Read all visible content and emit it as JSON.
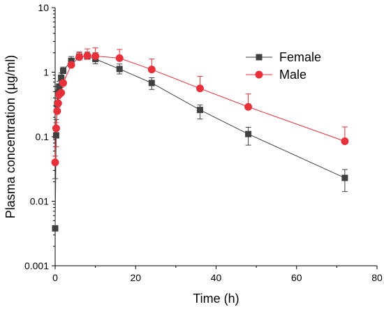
{
  "chart_data": {
    "type": "line",
    "xlabel": "Time (h)",
    "ylabel": "Plasma concentration (µg/ml)",
    "xlim": [
      0,
      80
    ],
    "ylim": [
      0.001,
      10
    ],
    "yscale": "log",
    "x_ticks": [
      0,
      20,
      40,
      60,
      80
    ],
    "x_tick_labels": [
      "0",
      "20",
      "40",
      "60",
      "80"
    ],
    "y_ticks": [
      0.001,
      0.01,
      0.1,
      1,
      10
    ],
    "y_tick_labels": [
      "0.001",
      "0.01",
      "0.1",
      "1",
      "10"
    ],
    "grid": false,
    "legend_position": "top-right",
    "series": [
      {
        "name": "Female",
        "color": "#404040",
        "marker": "square",
        "x": [
          0,
          0.25,
          0.5,
          0.75,
          1,
          1.5,
          2,
          4,
          6,
          8,
          10,
          16,
          24,
          36,
          48,
          72
        ],
        "y": [
          0.0038,
          0.105,
          0.32,
          0.48,
          0.6,
          0.82,
          1.05,
          1.5,
          1.75,
          1.75,
          1.6,
          1.12,
          0.68,
          0.26,
          0.11,
          0.023
        ],
        "err_up": [
          0.0186,
          0.08,
          0.08,
          0.12,
          0.12,
          0.15,
          0.15,
          0.25,
          0.3,
          0.3,
          0.4,
          0.22,
          0.14,
          0.05,
          0.03,
          0.008
        ],
        "err_down": [
          0.0,
          0.0,
          0.0,
          0.0,
          0.0,
          0.0,
          0.0,
          0.0,
          0.0,
          0.0,
          0.25,
          0.18,
          0.14,
          0.072,
          0.036,
          0.0089
        ]
      },
      {
        "name": "Male",
        "color": "#e8303a",
        "marker": "circle",
        "x": [
          0,
          0.25,
          0.5,
          0.75,
          1,
          1.5,
          2,
          4,
          6,
          8,
          10,
          16,
          24,
          36,
          48,
          72
        ],
        "y": [
          0.04,
          0.135,
          0.25,
          0.33,
          0.45,
          0.48,
          0.68,
          1.3,
          1.72,
          1.8,
          1.78,
          1.65,
          1.1,
          0.56,
          0.29,
          0.085
        ],
        "err_up": [
          0.01,
          0.03,
          0.06,
          0.06,
          0.1,
          0.1,
          0.15,
          0.3,
          0.3,
          0.5,
          0.6,
          0.6,
          0.5,
          0.3,
          0.17,
          0.057
        ],
        "err_down": [
          0.0,
          0.065,
          0.0,
          0.0,
          0.0,
          0.0,
          0.0,
          0.0,
          0.0,
          0.0,
          0.0,
          0.0,
          0.0,
          0.0,
          0.0,
          0.0
        ]
      }
    ]
  }
}
